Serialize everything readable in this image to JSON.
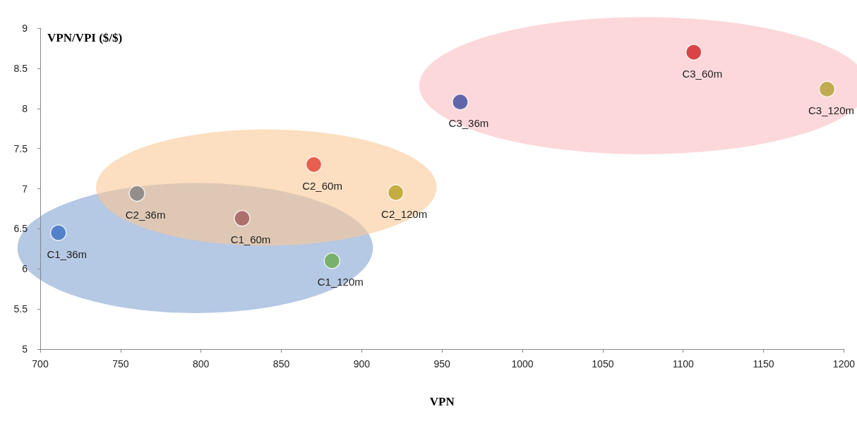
{
  "chart_data": {
    "type": "scatter",
    "xlabel": "VPN",
    "ylabel": "VPN/VPI ($/$)",
    "xlim": [
      700,
      1200
    ],
    "xticks": [
      700,
      750,
      800,
      850,
      900,
      950,
      1000,
      1050,
      1100,
      1150,
      1200
    ],
    "ylim": [
      5,
      9
    ],
    "yticks": [
      5,
      5.5,
      6,
      6.5,
      7,
      7.5,
      8,
      8.5,
      9
    ],
    "grid": false,
    "marker": "circle",
    "series": [
      {
        "x": [
          711.3,
          825.6,
          881.5
        ],
        "values": [
          6.45,
          6.63,
          6.1
        ],
        "colors": [
          "#3b6fc4",
          "#a05a5a",
          "#6aaa50"
        ]
      },
      {
        "x": [
          760.2,
          870.2,
          921.2
        ],
        "values": [
          6.94,
          7.3,
          6.95
        ],
        "colors": [
          "#808080",
          "#e04030",
          "#b8a020"
        ]
      },
      {
        "x": [
          961.3,
          1106.6,
          1189.5
        ],
        "values": [
          8.08,
          8.7,
          8.24
        ],
        "colors": [
          "#3a4aa0",
          "#d02020",
          "#b0a030"
        ]
      }
    ],
    "annotations": [
      {
        "text": "C1_36m",
        "x": 711.3,
        "y": 6.45
      },
      {
        "text": "C1_60m",
        "x": 825.6,
        "y": 6.63
      },
      {
        "text": "C1_120m",
        "x": 881.5,
        "y": 6.1
      },
      {
        "text": "C2_36m",
        "x": 760.2,
        "y": 6.94
      },
      {
        "text": "C2_60m",
        "x": 870.2,
        "y": 7.3
      },
      {
        "text": "C2_120m",
        "x": 921.2,
        "y": 6.95
      },
      {
        "text": "C3_36m",
        "x": 961.3,
        "y": 8.08
      },
      {
        "text": "C3_60m",
        "x": 1106.6,
        "y": 8.7
      },
      {
        "text": "C3_120m",
        "x": 1189.5,
        "y": 8.24
      }
    ]
  }
}
